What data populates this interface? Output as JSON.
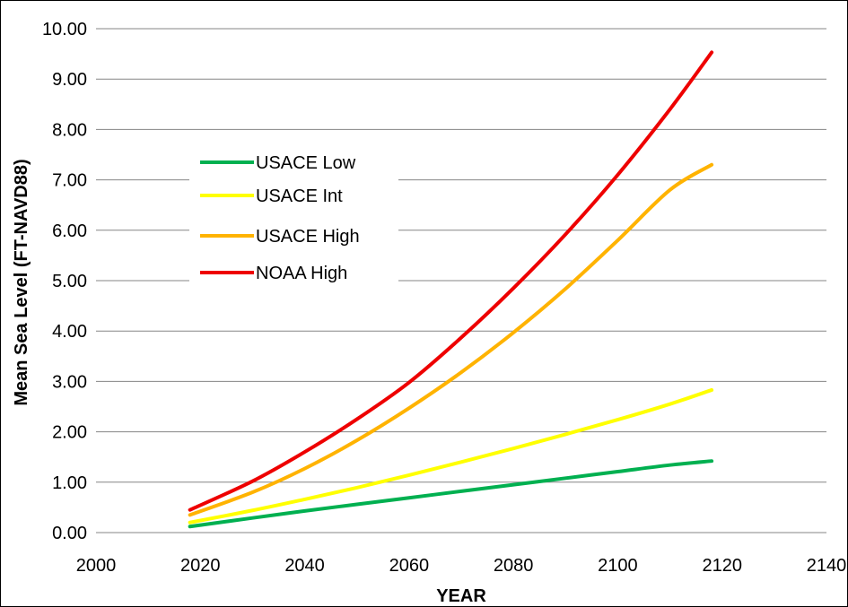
{
  "chart_data": {
    "type": "line",
    "title": "",
    "xlabel": "YEAR",
    "ylabel": "Mean Sea Level (FT-NAVD88)",
    "xlim": [
      2000,
      2140
    ],
    "ylim": [
      0,
      10
    ],
    "x_ticks": [
      "2000",
      "2020",
      "2040",
      "2060",
      "2080",
      "2100",
      "2120",
      "2140"
    ],
    "y_ticks": [
      "0.00",
      "1.00",
      "2.00",
      "3.00",
      "4.00",
      "5.00",
      "6.00",
      "7.00",
      "8.00",
      "9.00",
      "10.00"
    ],
    "grid": "horizontal",
    "legend_position": "upper-left",
    "x": [
      2018,
      2030,
      2040,
      2050,
      2060,
      2070,
      2080,
      2090,
      2100,
      2110,
      2118
    ],
    "series": [
      {
        "name": "USACE Low",
        "color": "#00b050",
        "values": [
          0.12,
          0.29,
          0.43,
          0.56,
          0.69,
          0.82,
          0.95,
          1.08,
          1.21,
          1.34,
          1.42
        ]
      },
      {
        "name": "USACE Int",
        "color": "#ffff00",
        "values": [
          0.2,
          0.44,
          0.66,
          0.89,
          1.14,
          1.4,
          1.67,
          1.95,
          2.24,
          2.55,
          2.83
        ]
      },
      {
        "name": "USACE High",
        "color": "#ffb300",
        "values": [
          0.35,
          0.8,
          1.27,
          1.83,
          2.47,
          3.18,
          3.97,
          4.84,
          5.8,
          6.8,
          7.3
        ]
      },
      {
        "name": "NOAA High",
        "color": "#ee0000",
        "values": [
          0.45,
          1.02,
          1.6,
          2.25,
          2.98,
          3.87,
          4.85,
          5.92,
          7.1,
          8.4,
          9.53
        ]
      }
    ]
  }
}
